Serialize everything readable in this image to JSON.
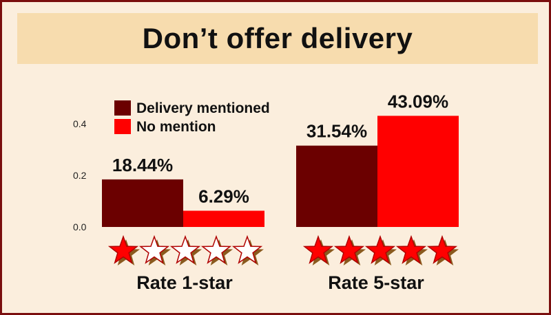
{
  "title": "Don’t offer delivery",
  "colors": {
    "background": "#fbeedd",
    "title_band": "#f7dcae",
    "border": "#7a0e0e",
    "delivery_mentioned": "#6b0000",
    "no_mention": "#ff0000",
    "star_shadow": "#8a5a1e"
  },
  "chart_data": {
    "type": "bar",
    "categories": [
      "Rate 1-star",
      "Rate 5-star"
    ],
    "series": [
      {
        "name": "Delivery mentioned",
        "values": [
          0.1844,
          0.3154
        ],
        "labels": [
          "18.44%",
          "31.54%"
        ]
      },
      {
        "name": "No mention",
        "values": [
          0.0629,
          0.4309
        ],
        "labels": [
          "6.29%",
          "43.09%"
        ]
      }
    ],
    "yticks": [
      "0.0",
      "0.2",
      "0.4"
    ],
    "ylim": [
      0,
      0.45
    ],
    "legend_position": "top-left",
    "stars": [
      {
        "filled": 1,
        "total": 5,
        "icon": "star-icon"
      },
      {
        "filled": 5,
        "total": 5,
        "icon": "star-icon"
      }
    ]
  }
}
